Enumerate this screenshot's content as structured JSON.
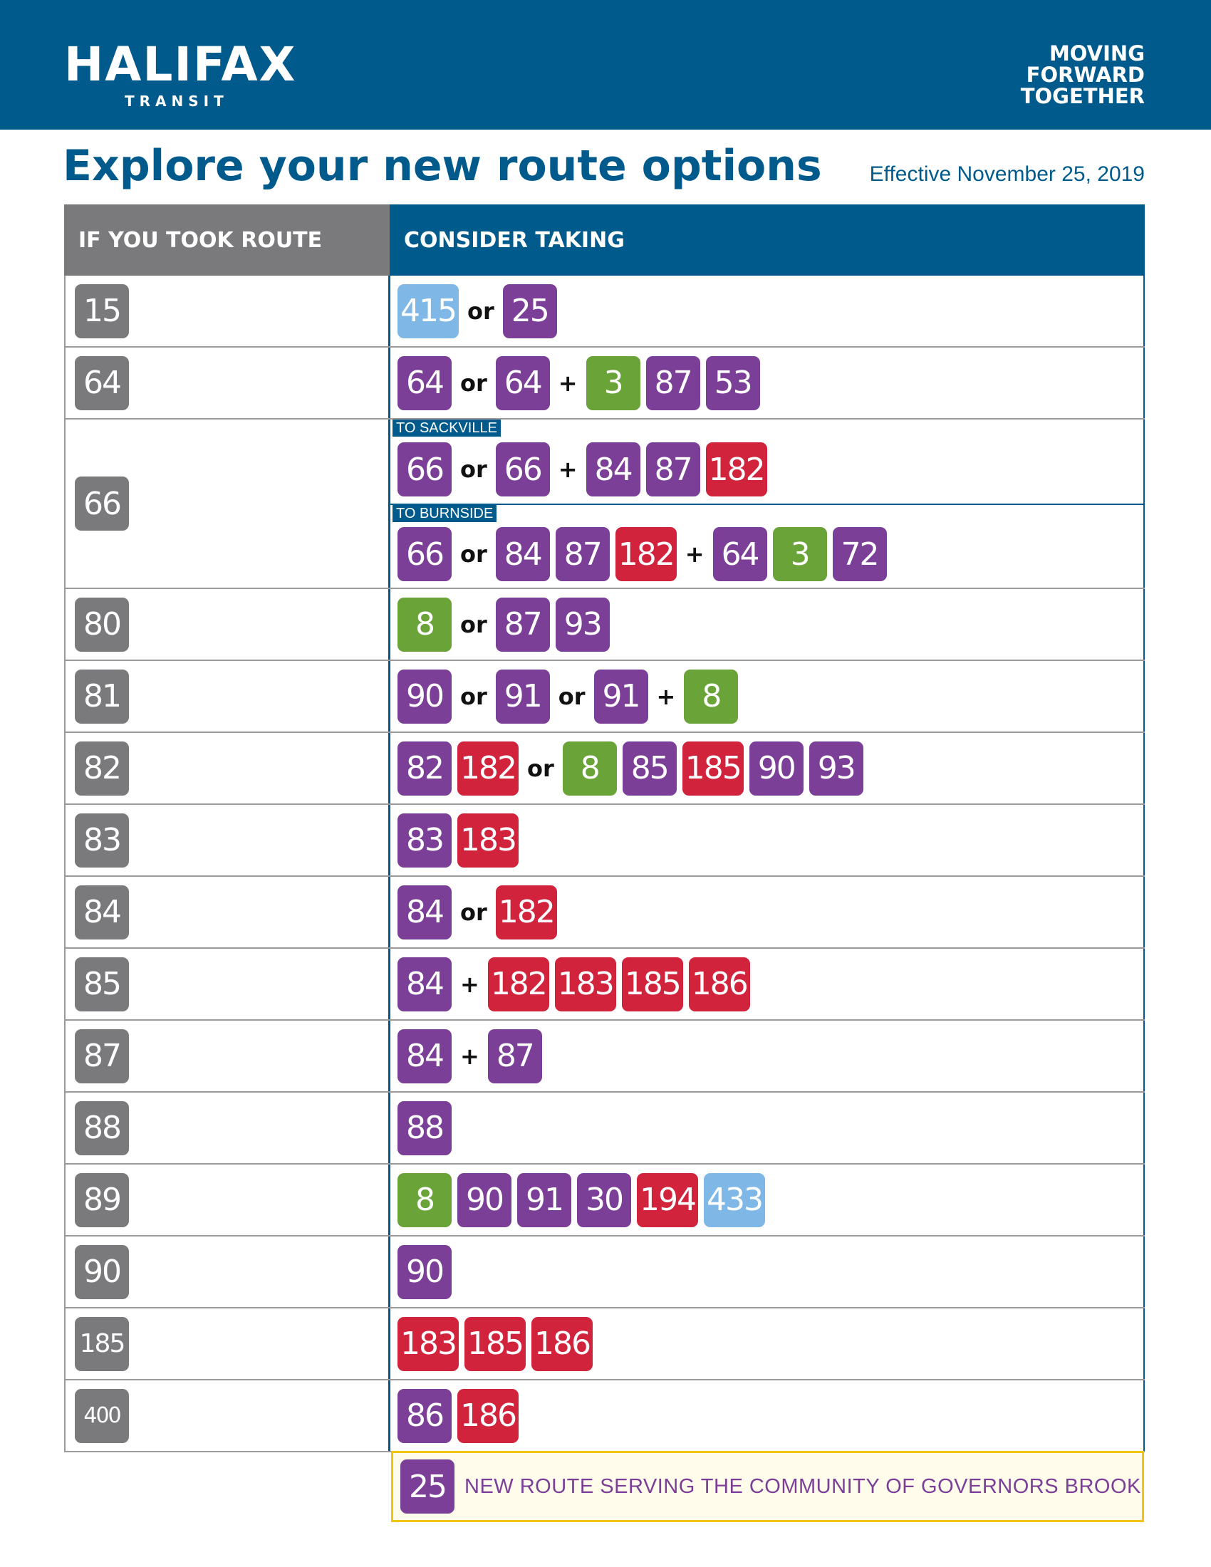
{
  "colors": {
    "brand": "#005a8c",
    "old_route": "#7a7a7c",
    "purple": "#7b3f98",
    "green": "#6aa338",
    "red": "#d2233d",
    "lightblue": "#7fb8e6"
  },
  "header": {
    "logo_main": "HALIFAX",
    "logo_sub": "TRANSIT",
    "tagline": [
      "MOVING",
      "FORWARD",
      "TOGETHER"
    ]
  },
  "title": "Explore your new route options",
  "effective": "Effective November 25, 2019",
  "table": {
    "col_left": "IF YOU TOOK ROUTE",
    "col_right": "CONSIDER TAKING",
    "rows": [
      {
        "old": "15",
        "options": [
          {
            "items": [
              {
                "b": "415",
                "c": "lightblue"
              },
              {
                "s": "or"
              },
              {
                "b": "25",
                "c": "purple"
              }
            ]
          }
        ]
      },
      {
        "old": "64",
        "options": [
          {
            "items": [
              {
                "b": "64",
                "c": "purple"
              },
              {
                "s": "or"
              },
              {
                "b": "64",
                "c": "purple"
              },
              {
                "s": "+"
              },
              {
                "b": "3",
                "c": "green"
              },
              {
                "b": "87",
                "c": "purple"
              },
              {
                "b": "53",
                "c": "purple"
              }
            ]
          }
        ]
      },
      {
        "old": "66",
        "options": [
          {
            "label": "TO SACKVILLE",
            "items": [
              {
                "b": "66",
                "c": "purple"
              },
              {
                "s": "or"
              },
              {
                "b": "66",
                "c": "purple"
              },
              {
                "s": "+"
              },
              {
                "b": "84",
                "c": "purple"
              },
              {
                "b": "87",
                "c": "purple"
              },
              {
                "b": "182",
                "c": "red"
              }
            ]
          },
          {
            "label": "TO BURNSIDE",
            "items": [
              {
                "b": "66",
                "c": "purple"
              },
              {
                "s": "or"
              },
              {
                "b": "84",
                "c": "purple"
              },
              {
                "b": "87",
                "c": "purple"
              },
              {
                "b": "182",
                "c": "red"
              },
              {
                "s": "+"
              },
              {
                "b": "64",
                "c": "purple"
              },
              {
                "b": "3",
                "c": "green"
              },
              {
                "b": "72",
                "c": "purple"
              }
            ]
          }
        ]
      },
      {
        "old": "80",
        "options": [
          {
            "items": [
              {
                "b": "8",
                "c": "green"
              },
              {
                "s": "or"
              },
              {
                "b": "87",
                "c": "purple"
              },
              {
                "b": "93",
                "c": "purple"
              }
            ]
          }
        ]
      },
      {
        "old": "81",
        "options": [
          {
            "items": [
              {
                "b": "90",
                "c": "purple"
              },
              {
                "s": "or"
              },
              {
                "b": "91",
                "c": "purple"
              },
              {
                "s": "or"
              },
              {
                "b": "91",
                "c": "purple"
              },
              {
                "s": "+"
              },
              {
                "b": "8",
                "c": "green"
              }
            ]
          }
        ]
      },
      {
        "old": "82",
        "options": [
          {
            "items": [
              {
                "b": "82",
                "c": "purple"
              },
              {
                "b": "182",
                "c": "red"
              },
              {
                "s": "or"
              },
              {
                "b": "8",
                "c": "green"
              },
              {
                "b": "85",
                "c": "purple"
              },
              {
                "b": "185",
                "c": "red"
              },
              {
                "b": "90",
                "c": "purple"
              },
              {
                "b": "93",
                "c": "purple"
              }
            ]
          }
        ]
      },
      {
        "old": "83",
        "options": [
          {
            "items": [
              {
                "b": "83",
                "c": "purple"
              },
              {
                "b": "183",
                "c": "red"
              }
            ]
          }
        ]
      },
      {
        "old": "84",
        "options": [
          {
            "items": [
              {
                "b": "84",
                "c": "purple"
              },
              {
                "s": "or"
              },
              {
                "b": "182",
                "c": "red"
              }
            ]
          }
        ]
      },
      {
        "old": "85",
        "options": [
          {
            "items": [
              {
                "b": "84",
                "c": "purple"
              },
              {
                "s": "+"
              },
              {
                "b": "182",
                "c": "red"
              },
              {
                "b": "183",
                "c": "red"
              },
              {
                "b": "185",
                "c": "red"
              },
              {
                "b": "186",
                "c": "red"
              }
            ]
          }
        ]
      },
      {
        "old": "87",
        "options": [
          {
            "items": [
              {
                "b": "84",
                "c": "purple"
              },
              {
                "s": "+"
              },
              {
                "b": "87",
                "c": "purple"
              }
            ]
          }
        ]
      },
      {
        "old": "88",
        "options": [
          {
            "items": [
              {
                "b": "88",
                "c": "purple"
              }
            ]
          }
        ]
      },
      {
        "old": "89",
        "options": [
          {
            "items": [
              {
                "b": "8",
                "c": "green"
              },
              {
                "b": "90",
                "c": "purple"
              },
              {
                "b": "91",
                "c": "purple"
              },
              {
                "b": "30",
                "c": "purple"
              },
              {
                "b": "194",
                "c": "red"
              },
              {
                "b": "433",
                "c": "lightblue"
              }
            ]
          }
        ]
      },
      {
        "old": "90",
        "options": [
          {
            "items": [
              {
                "b": "90",
                "c": "purple"
              }
            ]
          }
        ]
      },
      {
        "old": "185",
        "options": [
          {
            "items": [
              {
                "b": "183",
                "c": "red"
              },
              {
                "b": "185",
                "c": "red"
              },
              {
                "b": "186",
                "c": "red"
              }
            ]
          }
        ]
      },
      {
        "old": "400",
        "options": [
          {
            "items": [
              {
                "b": "86",
                "c": "purple"
              },
              {
                "b": "186",
                "c": "red"
              }
            ]
          }
        ]
      }
    ]
  },
  "notice": {
    "route": "25",
    "text": "NEW ROUTE SERVING THE COMMUNITY OF GOVERNORS BROOK"
  }
}
